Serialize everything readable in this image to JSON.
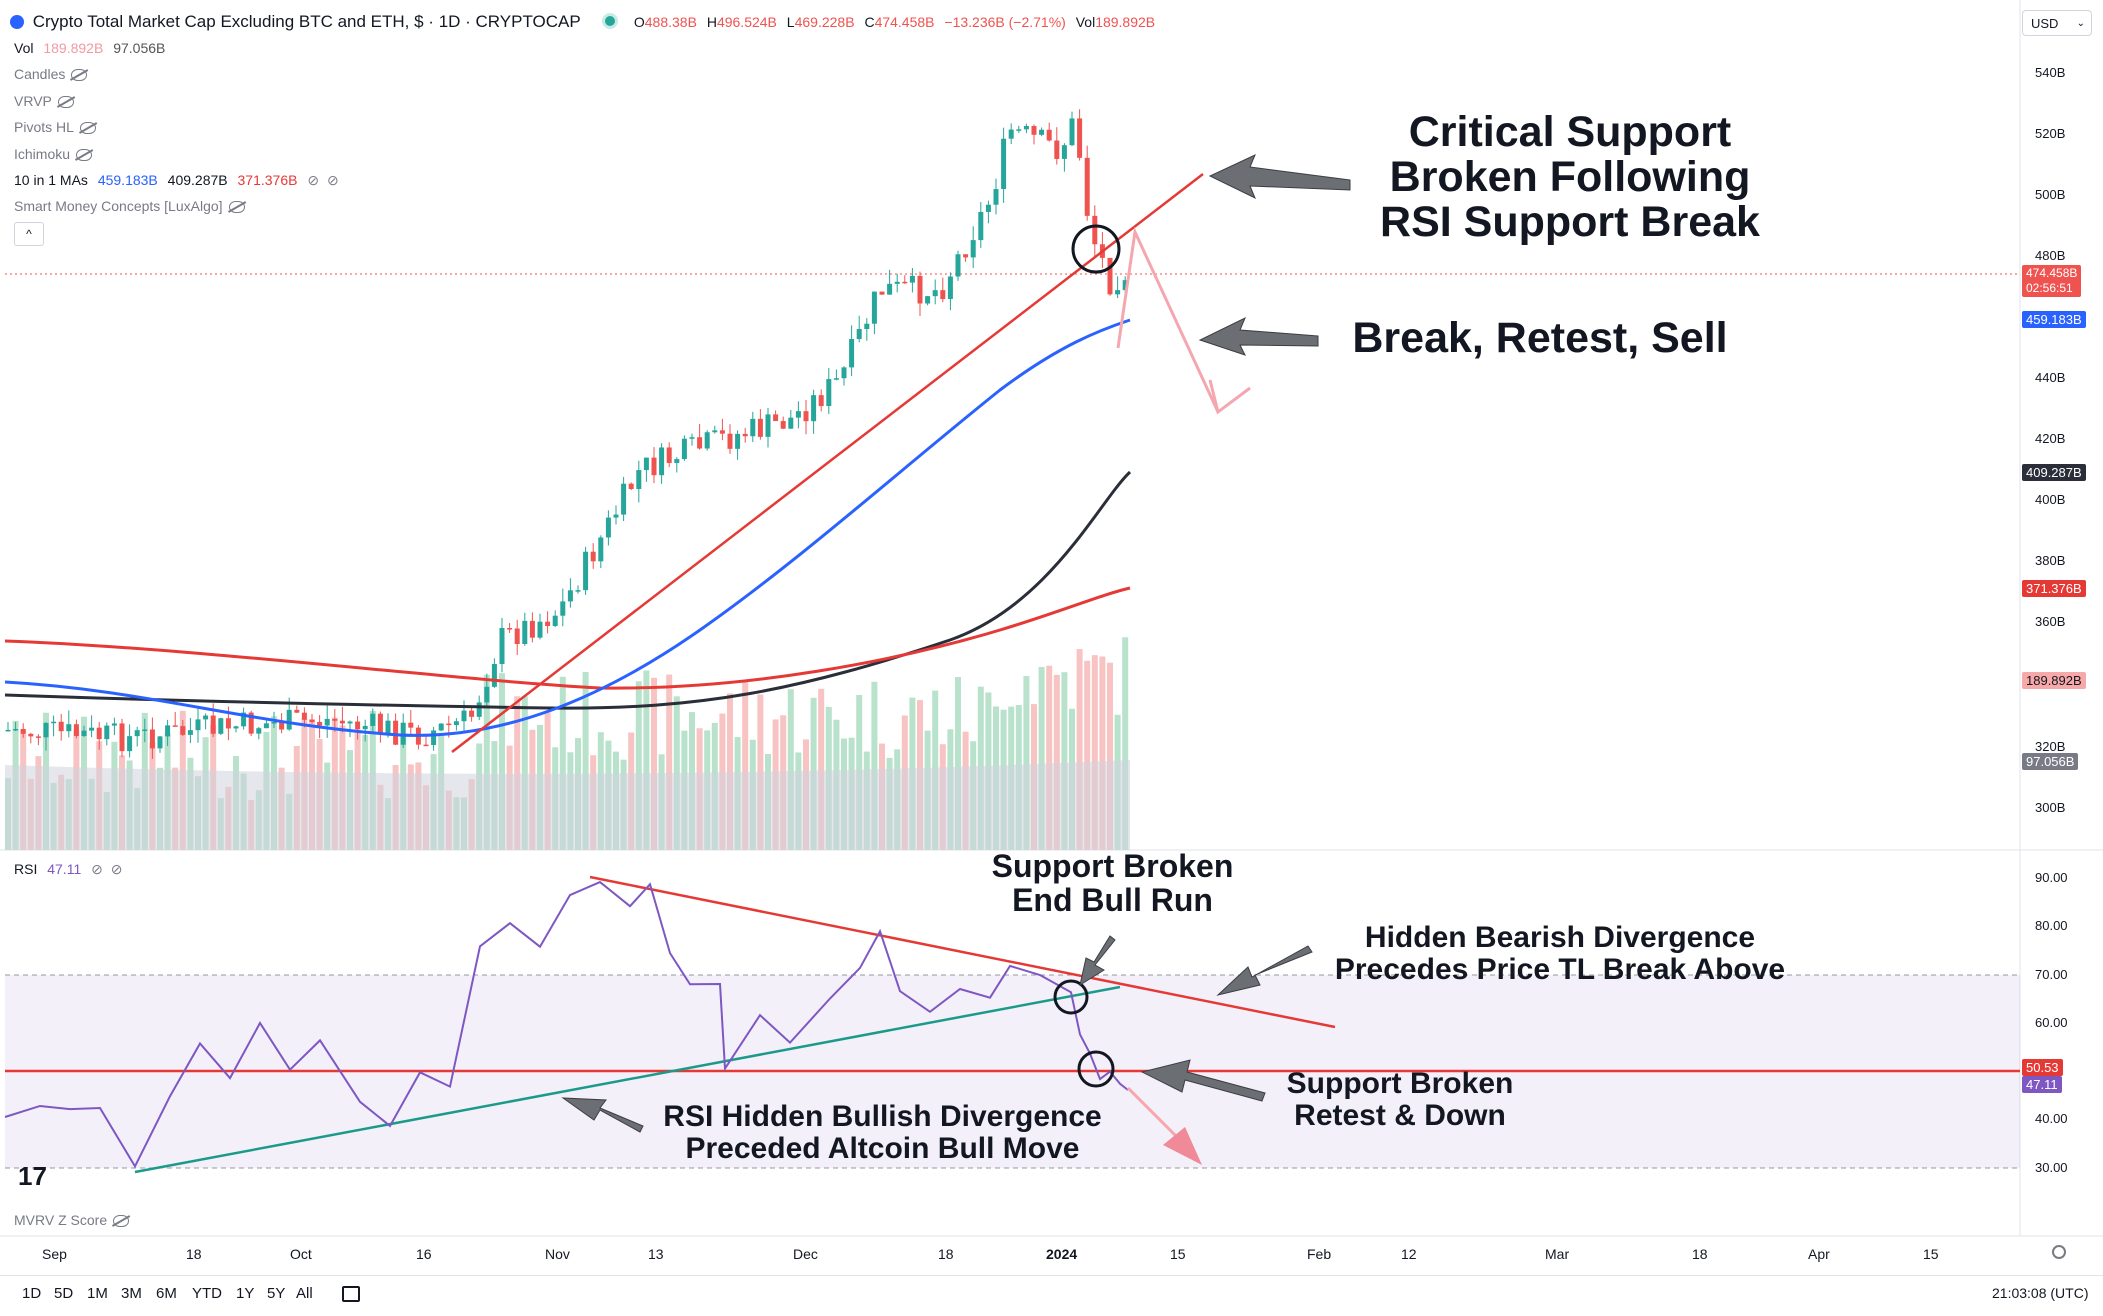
{
  "header": {
    "symbol_title": "Crypto Total Market Cap Excluding BTC and ETH, $ · 1D · CRYPTOCAP",
    "o_label": "O",
    "o_value": "488.38B",
    "h_label": "H",
    "h_value": "496.524B",
    "l_label": "L",
    "l_value": "469.228B",
    "c_label": "C",
    "c_value": "474.458B",
    "change": "−13.236B (−2.71%)",
    "vol_label": "Vol",
    "vol_value": "189.892B",
    "currency": "USD"
  },
  "legend": {
    "vol": {
      "label": "Vol",
      "v1": "189.892B",
      "v2": "97.056B"
    },
    "candles": "Candles",
    "vrvp": "VRVP",
    "pivots": "Pivots HL",
    "ichimoku": "Ichimoku",
    "mas": {
      "label": "10 in 1 MAs",
      "v1": "459.183B",
      "v2": "409.287B",
      "v3": "371.376B"
    },
    "smc": "Smart Money Concepts [LuxAlgo]"
  },
  "price_axis": [
    "540B",
    "520B",
    "500B",
    "480B",
    "440B",
    "420B",
    "400B",
    "380B",
    "360B",
    "320B",
    "300B"
  ],
  "price_tags": {
    "last": "474.458B",
    "countdown": "02:56:51",
    "ma1": "459.183B",
    "ma2": "409.287B",
    "ma3": "371.376B",
    "vol": "189.892B",
    "vol_ma": "97.056B"
  },
  "rsi": {
    "label": "RSI",
    "value": "47.11",
    "axis": [
      "90.00",
      "80.00",
      "70.00",
      "60.00",
      "40.00",
      "30.00"
    ],
    "tag_level": "50.53",
    "tag_value": "47.11"
  },
  "mvrv_label": "MVRV Z Score",
  "time_axis": [
    "Sep",
    "18",
    "Oct",
    "16",
    "Nov",
    "13",
    "Dec",
    "18",
    "2024",
    "15",
    "Feb",
    "12",
    "Mar",
    "18",
    "Apr",
    "15"
  ],
  "timeframes": [
    "1D",
    "5D",
    "1M",
    "3M",
    "6M",
    "YTD",
    "1Y",
    "5Y",
    "All"
  ],
  "clock": "21:03:08 (UTC)",
  "annotations": {
    "critical": [
      "Critical Support",
      "Broken Following",
      "RSI Support Break"
    ],
    "brs": "Break, Retest, Sell",
    "support_end": [
      "Support Broken",
      "End Bull Run"
    ],
    "hidden_bear": [
      "Hidden Bearish Divergence",
      "Precedes Price TL Break Above"
    ],
    "support_retest": [
      "Support Broken",
      "Retest & Down"
    ],
    "hidden_bull": [
      "RSI Hidden Bullish Divergence",
      "Preceded Altcoin Bull Move"
    ]
  },
  "colors": {
    "up": "#26a69a",
    "down": "#ef5350",
    "ma_blue": "#2962ff",
    "ma_red": "#e53935",
    "ma_black": "#2a2e39",
    "rsi": "#7e57c2",
    "trend_green": "#1b9a8a"
  }
}
